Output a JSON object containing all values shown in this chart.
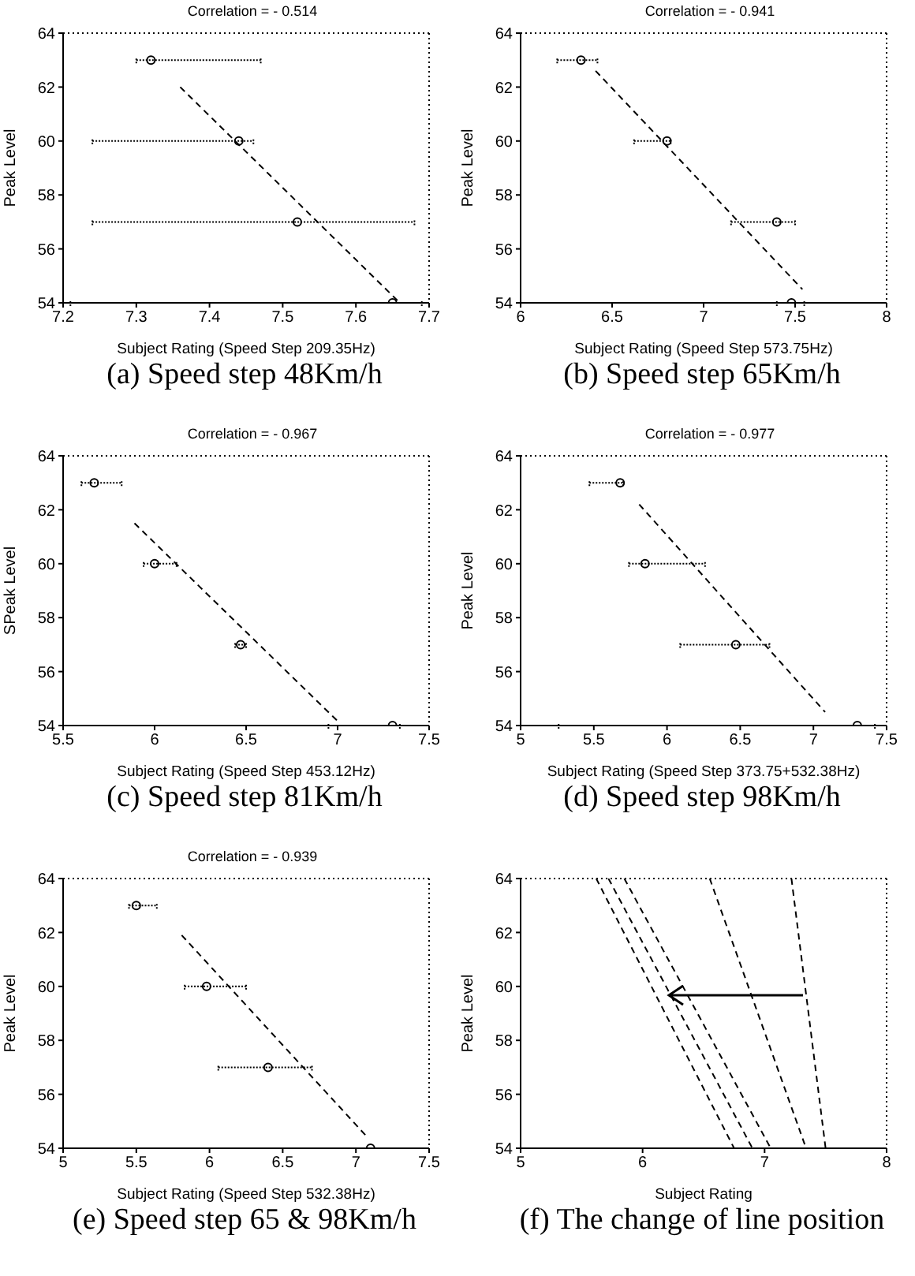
{
  "chart_data": [
    {
      "type": "scatter",
      "title": "Correlation = - 0.514",
      "subtitle": "(a) Speed step 48Km/h",
      "xlabel": "Subject Rating (Speed Step 209.35Hz)",
      "ylabel": "Peak Level",
      "xlim": [
        7.2,
        7.7
      ],
      "xticks": [
        7.2,
        7.3,
        7.4,
        7.5,
        7.6,
        7.7
      ],
      "ylim": [
        54,
        64
      ],
      "yticks": [
        54,
        56,
        58,
        60,
        62,
        64
      ],
      "marker": "circle",
      "series": [
        {
          "color": "#000000",
          "x": [
            7.32,
            7.44,
            7.52,
            7.65
          ],
          "values": [
            63,
            60,
            57,
            54
          ],
          "xerrors": [
            [
              7.3,
              7.47
            ],
            [
              7.24,
              7.46
            ],
            [
              7.24,
              7.68
            ],
            [
              7.21,
              7.69
            ]
          ]
        },
        {
          "type": "line",
          "color": "#000000",
          "line_style": "dashed",
          "marker": "none",
          "x": [
            7.36,
            7.66
          ],
          "values": [
            62,
            54
          ]
        }
      ]
    },
    {
      "type": "scatter",
      "title": "Correlation = - 0.941",
      "subtitle": "(b) Speed step 65Km/h",
      "xlabel": "Subject Rating (Speed Step 573.75Hz)",
      "ylabel": "Peak Level",
      "xlim": [
        6,
        8
      ],
      "xticks": [
        6,
        6.5,
        7,
        7.5,
        8
      ],
      "ylim": [
        54,
        64
      ],
      "yticks": [
        54,
        56,
        58,
        60,
        62,
        64
      ],
      "marker": "circle",
      "series": [
        {
          "color": "#000000",
          "x": [
            6.33,
            6.8,
            7.4,
            7.48
          ],
          "values": [
            63,
            60,
            57,
            54
          ],
          "xerrors": [
            [
              6.2,
              6.42
            ],
            [
              6.62,
              6.82
            ],
            [
              7.15,
              7.5
            ],
            [
              7.4,
              7.55
            ]
          ]
        },
        {
          "type": "line",
          "color": "#000000",
          "line_style": "dashed",
          "marker": "none",
          "x": [
            6.41,
            7.54
          ],
          "values": [
            62.6,
            54.5
          ]
        }
      ]
    },
    {
      "type": "scatter",
      "title": "Correlation = - 0.967",
      "subtitle": "(c) Speed step 81Km/h",
      "xlabel": "Subject Rating (Speed Step 453.12Hz)",
      "ylabel": "SPeak Level",
      "xlim": [
        5.5,
        7.5
      ],
      "xticks": [
        5.5,
        6,
        6.5,
        7,
        7.5
      ],
      "ylim": [
        54,
        64
      ],
      "yticks": [
        54,
        56,
        58,
        60,
        62,
        64
      ],
      "marker": "circle",
      "series": [
        {
          "color": "#000000",
          "x": [
            5.67,
            6.0,
            6.47,
            7.3
          ],
          "values": [
            63,
            60,
            57,
            54
          ],
          "xerrors": [
            [
              5.6,
              5.82
            ],
            [
              5.94,
              6.12
            ],
            [
              6.44,
              6.5
            ],
            [
              6.95,
              7.34
            ]
          ]
        },
        {
          "type": "line",
          "color": "#000000",
          "line_style": "dashed",
          "marker": "none",
          "x": [
            5.89,
            7.01
          ],
          "values": [
            61.5,
            54.1
          ]
        }
      ]
    },
    {
      "type": "scatter",
      "title": "Correlation = - 0.977",
      "subtitle": "(d) Speed step 98Km/h",
      "xlabel": "Subject Rating (Speed Step 373.75+532.38Hz)",
      "ylabel": "Peak Level",
      "xlim": [
        5,
        7.5
      ],
      "xticks": [
        5,
        5.5,
        6,
        6.5,
        7,
        7.5
      ],
      "ylim": [
        54,
        64
      ],
      "yticks": [
        54,
        56,
        58,
        60,
        62,
        64
      ],
      "marker": "circle",
      "series": [
        {
          "color": "#000000",
          "x": [
            5.68,
            5.85,
            6.47,
            7.3
          ],
          "values": [
            63,
            60,
            57,
            54
          ],
          "xerrors": [
            [
              5.47,
              5.7
            ],
            [
              5.74,
              6.26
            ],
            [
              6.09,
              6.7
            ],
            [
              5.26,
              7.42
            ]
          ]
        },
        {
          "type": "line",
          "color": "#000000",
          "line_style": "dashed",
          "marker": "none",
          "x": [
            5.81,
            7.08
          ],
          "values": [
            62.2,
            54.5
          ]
        }
      ]
    },
    {
      "type": "scatter",
      "title": "Correlation = - 0.939",
      "subtitle": "(e) Speed step 65 & 98Km/h",
      "xlabel": "Subject Rating (Speed Step 532.38Hz)",
      "ylabel": "Peak Level",
      "xlim": [
        5,
        7.5
      ],
      "xticks": [
        5,
        5.5,
        6,
        6.5,
        7,
        7.5
      ],
      "ylim": [
        54,
        64
      ],
      "yticks": [
        54,
        56,
        58,
        60,
        62,
        64
      ],
      "marker": "circle",
      "series": [
        {
          "color": "#000000",
          "x": [
            5.5,
            5.98,
            6.4,
            7.1
          ],
          "values": [
            63,
            60,
            57,
            54
          ],
          "xerrors": [
            [
              5.45,
              5.64
            ],
            [
              5.83,
              6.25
            ],
            [
              6.06,
              6.7
            ],
            null
          ]
        },
        {
          "type": "line",
          "color": "#000000",
          "line_style": "dashed",
          "marker": "none",
          "x": [
            5.81,
            7.08
          ],
          "values": [
            61.9,
            54.4
          ]
        }
      ]
    },
    {
      "type": "line",
      "subtitle": "(f) The change of line position",
      "xlabel": "Subject Rating",
      "ylabel": "Peak Level",
      "xlim": [
        5,
        8
      ],
      "xticks": [
        5,
        6,
        7,
        8
      ],
      "ylim": [
        54,
        64
      ],
      "yticks": [
        54,
        56,
        58,
        60,
        62,
        64
      ],
      "line_style": "dashed",
      "marker": "none",
      "series": [
        {
          "color": "#000000",
          "x": [
            5.62,
            6.75
          ],
          "values": [
            64,
            54
          ]
        },
        {
          "color": "#000000",
          "x": [
            5.72,
            6.9
          ],
          "values": [
            64,
            54
          ]
        },
        {
          "color": "#000000",
          "x": [
            5.85,
            7.05
          ],
          "values": [
            64,
            54
          ]
        },
        {
          "color": "#000000",
          "x": [
            6.55,
            7.34
          ],
          "values": [
            64,
            54
          ]
        },
        {
          "color": "#000000",
          "x": [
            7.22,
            7.5
          ],
          "values": [
            64,
            54
          ]
        }
      ]
    }
  ]
}
